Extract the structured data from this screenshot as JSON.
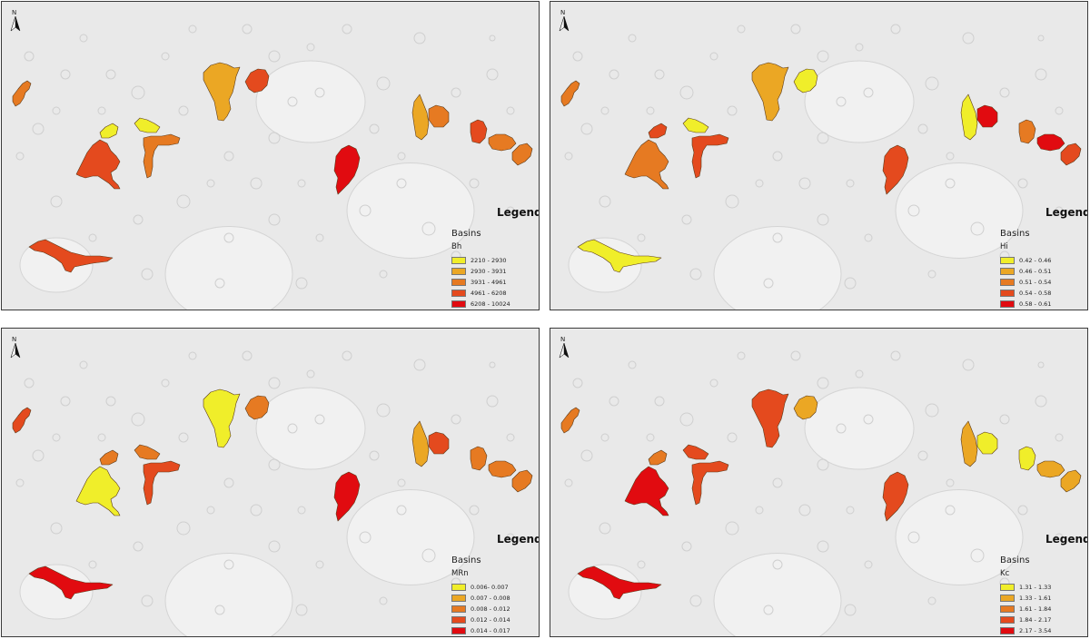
{
  "colors": {
    "class1": "#f0ee2a",
    "class2": "#eba724",
    "class3": "#e67a22",
    "class4": "#e44a1e",
    "class5": "#e10b10",
    "terrain": "#e9e9e9",
    "crater": "#cfcfcf"
  },
  "north_label": "N",
  "panels": [
    {
      "legend_title": "Legend",
      "layer": "Basins",
      "field": "Bh",
      "classes": [
        "2210 - 2930",
        "2930 - 3931",
        "3931 - 4961",
        "4961 - 6208",
        "6208 - 10024"
      ],
      "basin_classes": [
        3,
        2,
        4,
        4,
        1,
        1,
        3,
        2,
        3,
        4,
        3,
        3,
        5,
        4
      ]
    },
    {
      "legend_title": "Legend",
      "layer": "Basins",
      "field": "Hi",
      "classes": [
        "0.42 - 0.46",
        "0.46 - 0.51",
        "0.51 - 0.54",
        "0.54 - 0.58",
        "0.58 - 0.61"
      ],
      "basin_classes": [
        3,
        2,
        1,
        3,
        4,
        1,
        4,
        1,
        5,
        3,
        5,
        4,
        4,
        1
      ]
    },
    {
      "legend_title": "Legend",
      "layer": "Basins",
      "field": "MRn",
      "classes": [
        "0.006- 0.007",
        "0.007 - 0.008",
        "0.008 - 0.012",
        "0.012 - 0.014",
        "0.014 - 0.017"
      ],
      "basin_classes": [
        4,
        1,
        3,
        1,
        3,
        3,
        4,
        2,
        4,
        3,
        3,
        3,
        5,
        5
      ]
    },
    {
      "legend_title": "Legend",
      "layer": "Basins",
      "field": "Kc",
      "classes": [
        "1.31 - 1.33",
        "1.33 - 1.61",
        "1.61 - 1.84",
        "1.84 - 2.17",
        "2.17 - 3.54"
      ],
      "basin_classes": [
        3,
        4,
        2,
        5,
        3,
        4,
        4,
        2,
        1,
        1,
        2,
        2,
        4,
        5
      ]
    }
  ]
}
